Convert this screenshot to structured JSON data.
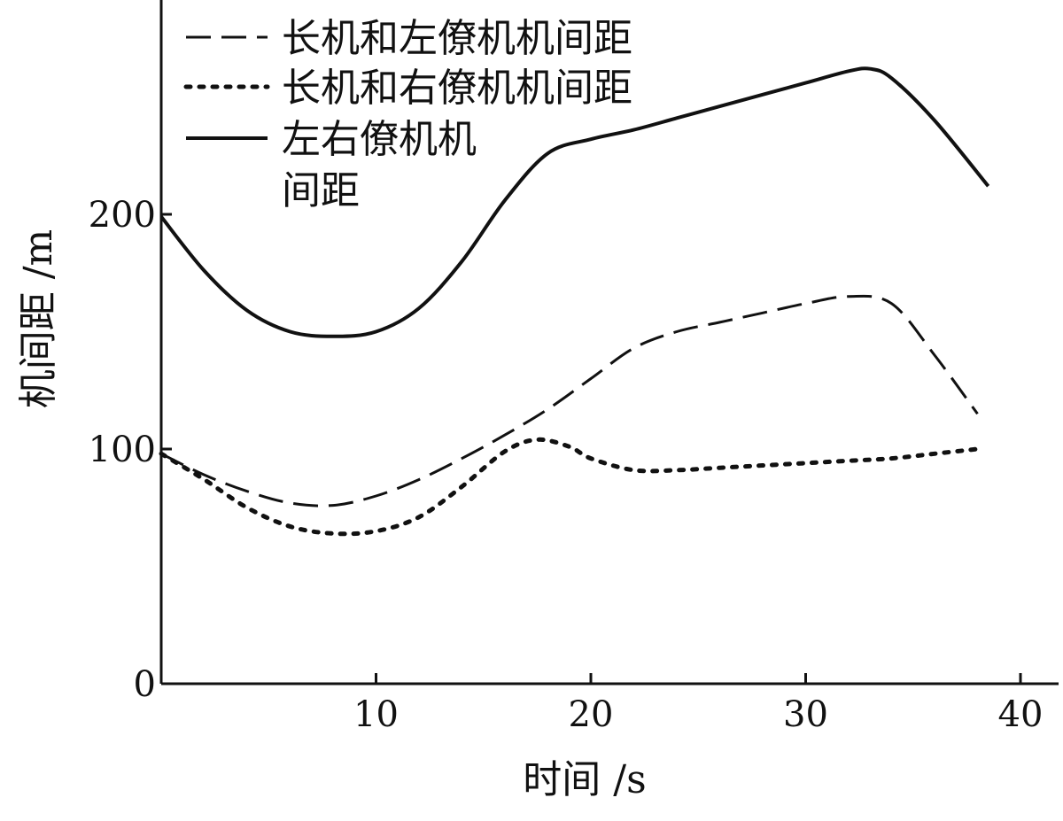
{
  "chart_data": {
    "type": "line",
    "xlabel": "时间 /s",
    "ylabel": "机间距 /m",
    "xlim": [
      0,
      42
    ],
    "ylim": [
      0,
      250
    ],
    "x_ticks": [
      10,
      20,
      30,
      40
    ],
    "y_ticks": [
      0,
      100,
      200
    ],
    "grid": false,
    "legend_position": "top-left",
    "series": [
      {
        "name": "长机和左僚机机间距",
        "style": "dashed",
        "color": "#111111",
        "x": [
          0,
          2,
          4,
          6,
          8,
          10,
          12,
          14,
          16,
          18,
          20,
          22,
          24,
          26,
          28,
          30,
          32,
          34,
          36,
          38
        ],
        "y": [
          98,
          89,
          82,
          77,
          76,
          80,
          87,
          96,
          106,
          117,
          130,
          143,
          150,
          154,
          158,
          162,
          165,
          162,
          140,
          115
        ]
      },
      {
        "name": "长机和右僚机机间距",
        "style": "dotted",
        "color": "#111111",
        "x": [
          0,
          2,
          4,
          6,
          8,
          10,
          12,
          14,
          16,
          17.5,
          19,
          20,
          22,
          24,
          26,
          28,
          30,
          32,
          34,
          36,
          38
        ],
        "y": [
          98,
          87,
          75,
          67,
          64,
          65,
          71,
          84,
          99,
          104,
          101,
          96,
          91,
          91,
          92,
          93,
          94,
          95,
          96,
          98,
          100
        ]
      },
      {
        "name": "左右僚机机间距",
        "style": "solid",
        "color": "#111111",
        "x": [
          0,
          2,
          4,
          6,
          8,
          10,
          12,
          14,
          16,
          18,
          20,
          22,
          24,
          26,
          28,
          30,
          32,
          33,
          34,
          36,
          38.5
        ],
        "y": [
          199,
          176,
          159,
          150,
          148,
          150,
          160,
          180,
          206,
          226,
          232,
          236,
          241,
          246,
          251,
          256,
          261,
          262,
          258,
          240,
          212
        ]
      }
    ]
  },
  "legend": {
    "items": [
      {
        "label_lines": [
          "长机和左僚机机间距"
        ]
      },
      {
        "label_lines": [
          "长机和右僚机机间距"
        ]
      },
      {
        "label_lines": [
          "左右僚机机",
          "间距"
        ]
      }
    ]
  }
}
